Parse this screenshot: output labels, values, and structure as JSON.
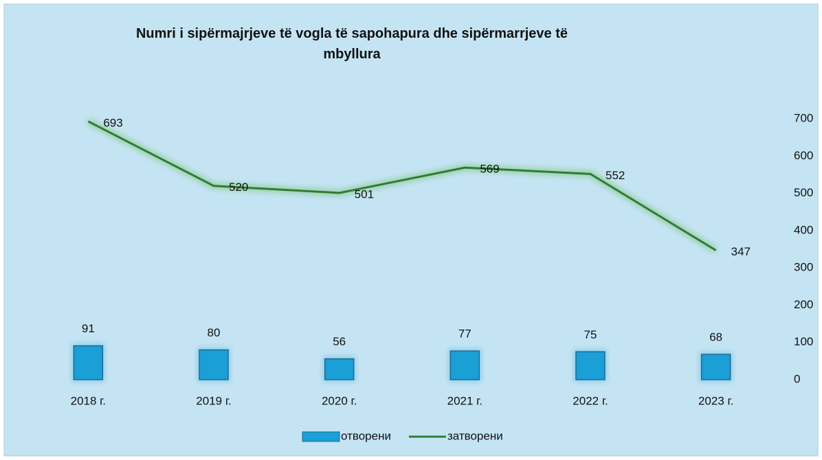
{
  "chart_data": {
    "type": "combo",
    "title": "Numri i sipërmajrjeve të vogla të sapohapura dhe sipërmarrjeve të mbyllura",
    "categories": [
      "2018 г.",
      "2019 г.",
      "2020 г.",
      "2021 г.",
      "2022 г.",
      "2023 г."
    ],
    "series": [
      {
        "name": "отворени",
        "type": "bar",
        "color": "#1a9fd6",
        "values": [
          91,
          80,
          56,
          77,
          75,
          68
        ]
      },
      {
        "name": "затворени",
        "type": "line",
        "color": "#2e7d32",
        "values": [
          693,
          520,
          501,
          569,
          552,
          347
        ]
      }
    ],
    "ylim": [
      0,
      700
    ],
    "yticks": [
      0,
      100,
      200,
      300,
      400,
      500,
      600,
      700
    ],
    "y_axis_position": "right",
    "grid": false,
    "legend": "bottom"
  }
}
